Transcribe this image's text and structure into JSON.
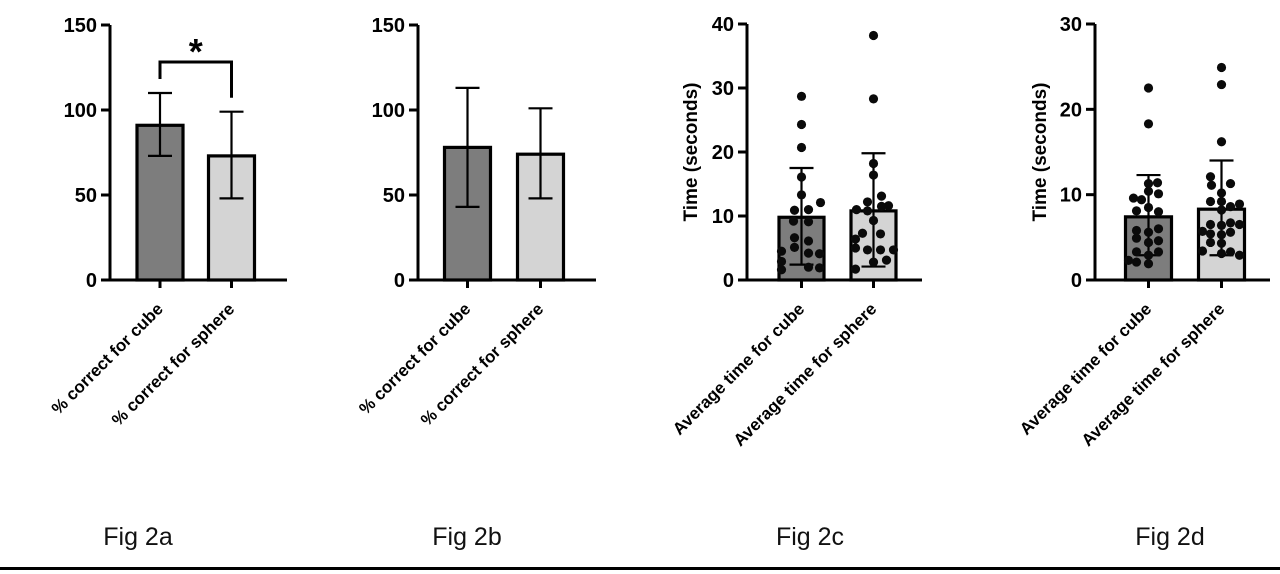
{
  "page": {
    "background": "#ffffff",
    "axis_color": "#000000",
    "point_color": "#0a0a0a",
    "bottom_rule_color": "#000000"
  },
  "chart_data": [
    {
      "id": "fig2a",
      "type": "bar",
      "title": "Fig 2a",
      "categories": [
        "% correct for cube",
        "% correct for sphere"
      ],
      "values": [
        91,
        73
      ],
      "errors_low": [
        73,
        48
      ],
      "errors_high": [
        110,
        99
      ],
      "bar_colors": [
        "#7d7d7d",
        "#d4d4d4"
      ],
      "ylabel": "",
      "ylim": [
        0,
        150
      ],
      "yticks": [
        0,
        50,
        100,
        150
      ],
      "grid": false,
      "legend": false,
      "significance": {
        "symbol": "*",
        "between": [
          0,
          1
        ]
      },
      "points": null
    },
    {
      "id": "fig2b",
      "type": "bar",
      "title": "Fig 2b",
      "categories": [
        "% correct for cube",
        "% correct for sphere"
      ],
      "values": [
        78,
        74
      ],
      "errors_low": [
        43,
        48
      ],
      "errors_high": [
        113,
        101
      ],
      "bar_colors": [
        "#7d7d7d",
        "#d4d4d4"
      ],
      "ylabel": "",
      "ylim": [
        0,
        150
      ],
      "yticks": [
        0,
        50,
        100,
        150
      ],
      "grid": false,
      "legend": false,
      "significance": null,
      "points": null
    },
    {
      "id": "fig2c",
      "type": "bar",
      "title": "Fig 2c",
      "categories": [
        "Average time for cube",
        "Average time for sphere"
      ],
      "values": [
        9.8,
        10.8
      ],
      "errors_low": [
        2.4,
        2.1
      ],
      "errors_high": [
        17.5,
        19.8
      ],
      "bar_colors": [
        "#7d7d7d",
        "#d4d4d4"
      ],
      "ylabel": "Time (seconds)",
      "ylim": [
        0,
        40
      ],
      "yticks": [
        0,
        10,
        20,
        30,
        40
      ],
      "grid": false,
      "legend": false,
      "significance": null,
      "points": [
        [
          [
            28.7,
            0
          ],
          [
            24.3,
            0
          ],
          [
            20.7,
            0
          ],
          [
            16.1,
            0
          ],
          [
            13.3,
            0
          ],
          [
            12.1,
            19
          ],
          [
            11,
            7
          ],
          [
            10.9,
            -7
          ],
          [
            9.2,
            -8
          ],
          [
            9.1,
            7
          ],
          [
            6.6,
            -7
          ],
          [
            6.1,
            7
          ],
          [
            5.1,
            -7
          ],
          [
            4.5,
            -20
          ],
          [
            4.2,
            7
          ],
          [
            4.1,
            18
          ],
          [
            2.9,
            -20
          ],
          [
            2,
            7
          ],
          [
            1.9,
            18
          ],
          [
            1.6,
            -20
          ]
        ],
        [
          [
            38.2,
            0
          ],
          [
            28.3,
            0
          ],
          [
            18.2,
            0
          ],
          [
            16.4,
            0
          ],
          [
            13.1,
            8
          ],
          [
            12.2,
            -6
          ],
          [
            11.6,
            15
          ],
          [
            11.5,
            8
          ],
          [
            11,
            -17
          ],
          [
            10.8,
            -6
          ],
          [
            9.3,
            0
          ],
          [
            7.3,
            -11
          ],
          [
            7.2,
            7
          ],
          [
            6.4,
            -18
          ],
          [
            5,
            -18
          ],
          [
            4.7,
            -6
          ],
          [
            4.7,
            7
          ],
          [
            4.7,
            20
          ],
          [
            3.1,
            13
          ],
          [
            2.8,
            0
          ],
          [
            1.7,
            -18
          ]
        ]
      ]
    },
    {
      "id": "fig2d",
      "type": "bar",
      "title": "Fig 2d",
      "categories": [
        "Average time for cube",
        "Average time for sphere"
      ],
      "values": [
        7.4,
        8.3
      ],
      "errors_low": [
        2.9,
        2.9
      ],
      "errors_high": [
        12.3,
        14
      ],
      "bar_colors": [
        "#7d7d7d",
        "#d4d4d4"
      ],
      "ylabel": "Time (seconds)",
      "ylim": [
        0,
        30
      ],
      "yticks": [
        0,
        10,
        20,
        30
      ],
      "grid": false,
      "legend": false,
      "significance": null,
      "points": [
        [
          [
            22.5,
            0
          ],
          [
            18.3,
            0
          ],
          [
            11.4,
            9
          ],
          [
            11.3,
            0
          ],
          [
            10.4,
            0
          ],
          [
            10.1,
            10
          ],
          [
            9.6,
            -15
          ],
          [
            9.4,
            -7
          ],
          [
            8.5,
            0
          ],
          [
            8.1,
            -12
          ],
          [
            8,
            10
          ],
          [
            6,
            10
          ],
          [
            5.8,
            -12
          ],
          [
            5.6,
            0
          ],
          [
            4.9,
            -12
          ],
          [
            4.6,
            10
          ],
          [
            4.4,
            0
          ],
          [
            3.3,
            -12
          ],
          [
            3.3,
            10
          ],
          [
            2.9,
            0
          ],
          [
            2.3,
            -20
          ],
          [
            2.1,
            -12
          ],
          [
            1.9,
            0
          ]
        ],
        [
          [
            24.9,
            0
          ],
          [
            22.9,
            0
          ],
          [
            16.2,
            0
          ],
          [
            12.1,
            -11
          ],
          [
            11.3,
            9
          ],
          [
            11.1,
            -10
          ],
          [
            10.2,
            0
          ],
          [
            9.2,
            -11
          ],
          [
            9.2,
            0
          ],
          [
            8.9,
            18
          ],
          [
            8.6,
            9
          ],
          [
            8.2,
            0
          ],
          [
            6.7,
            9
          ],
          [
            6.5,
            -11
          ],
          [
            6.5,
            18
          ],
          [
            6.4,
            0
          ],
          [
            5.7,
            -19
          ],
          [
            5.6,
            9
          ],
          [
            5.4,
            -11
          ],
          [
            5.3,
            0
          ],
          [
            4.4,
            -11
          ],
          [
            4.3,
            0
          ],
          [
            3.4,
            -19
          ],
          [
            3.3,
            9
          ],
          [
            3.1,
            0
          ],
          [
            2.9,
            18
          ]
        ]
      ]
    }
  ]
}
